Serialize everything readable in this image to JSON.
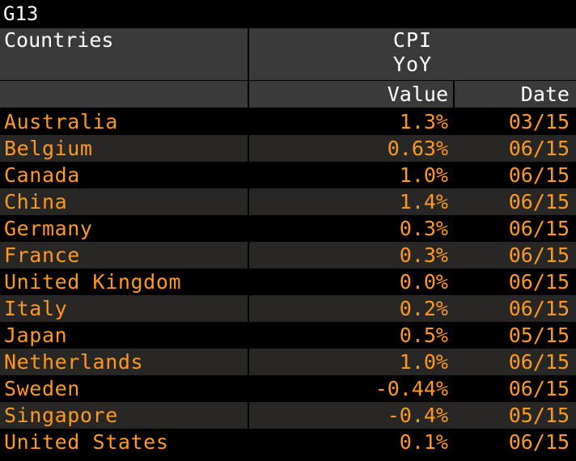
{
  "window": {
    "title": "G13"
  },
  "header": {
    "countries_label": "Countries",
    "group_label_line1": "CPI",
    "group_label_line2": "YoY",
    "value_label": "Value",
    "date_label": "Date"
  },
  "colors": {
    "background": "#000000",
    "header_bg": "#3a3a3a",
    "row_alt_bg": "#292725",
    "data_text": "#ff9a1f",
    "header_text": "#ffffff"
  },
  "rows": [
    {
      "country": "Australia",
      "value": "1.3%",
      "date": "03/15"
    },
    {
      "country": "Belgium",
      "value": "0.63%",
      "date": "06/15"
    },
    {
      "country": "Canada",
      "value": "1.0%",
      "date": "06/15"
    },
    {
      "country": "China",
      "value": "1.4%",
      "date": "06/15"
    },
    {
      "country": "Germany",
      "value": "0.3%",
      "date": "06/15"
    },
    {
      "country": "France",
      "value": "0.3%",
      "date": "06/15"
    },
    {
      "country": "United Kingdom",
      "value": "0.0%",
      "date": "06/15"
    },
    {
      "country": "Italy",
      "value": "0.2%",
      "date": "06/15"
    },
    {
      "country": "Japan",
      "value": "0.5%",
      "date": "05/15"
    },
    {
      "country": "Netherlands",
      "value": "1.0%",
      "date": "06/15"
    },
    {
      "country": "Sweden",
      "value": "-0.44%",
      "date": "06/15"
    },
    {
      "country": "Singapore",
      "value": "-0.4%",
      "date": "05/15"
    },
    {
      "country": "United States",
      "value": "0.1%",
      "date": "06/15"
    }
  ]
}
